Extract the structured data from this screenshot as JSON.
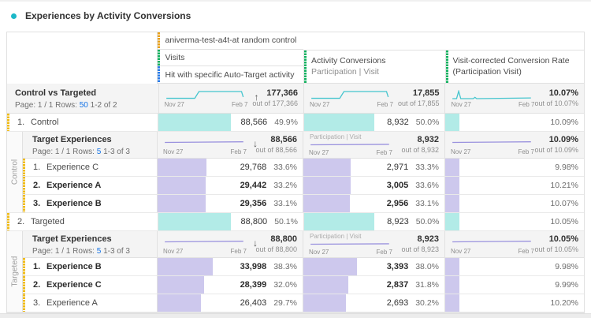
{
  "title": "Experiences by Activity Conversions",
  "colors": {
    "accent_dot": "#1CB8C8",
    "teal_line": "#45C5CE",
    "teal_bar": "#B2EBE7",
    "purple_line": "#9A92DE",
    "purple_bar": "#CDC8ED",
    "header_orange": "#E9A21B",
    "header_green": "#12B05F",
    "header_blue": "#2B7DE9",
    "row_yellow": "#EFBB18",
    "link_blue": "#1473E6"
  },
  "spark": {
    "start": "Nov 27",
    "end": "Feb 7"
  },
  "columns": {
    "dimension_header": "aniverma-test-a4t-at random control",
    "visits": {
      "metric": "Visits",
      "segment": "Hit with specific Auto-Target activity"
    },
    "conversions": {
      "metric": "Activity Conversions",
      "sub": "Participation | Visit"
    },
    "rate": {
      "metric": "Visit-corrected Conversion Rate",
      "sub": "(Participation Visit)"
    }
  },
  "summary": {
    "label": "Control vs Targeted",
    "page_prefix": "Page: 1 / 1",
    "rows_label": "Rows:",
    "rows_value": "50",
    "range": "1-2 of 2",
    "sort_arrow": "↑",
    "visits": {
      "total": "177,366",
      "out_of": "out of 177,366"
    },
    "conversions": {
      "total": "17,855",
      "out_of": "out of 17,855"
    },
    "rate": {
      "total": "10.07%",
      "out_of": "out of 10.07%"
    }
  },
  "rows": {
    "control": {
      "num": "1.",
      "label": "Control",
      "bold": false,
      "visits": {
        "value": "88,566",
        "pct": 49.9,
        "pct_label": "49.9%"
      },
      "conversions": {
        "value": "8,932",
        "pct": 50.0,
        "pct_label": "50.0%"
      },
      "rate": {
        "pct": 10.09,
        "pct_label": "10.09%"
      }
    },
    "targeted": {
      "num": "2.",
      "label": "Targeted",
      "bold": false,
      "visits": {
        "value": "88,800",
        "pct": 50.1,
        "pct_label": "50.1%"
      },
      "conversions": {
        "value": "8,923",
        "pct": 50.0,
        "pct_label": "50.0%"
      },
      "rate": {
        "pct": 10.05,
        "pct_label": "10.05%"
      }
    }
  },
  "control_group": {
    "side_label": "Control",
    "header": {
      "title": "Target Experiences",
      "page_prefix": "Page: 1 / 1",
      "rows_label": "Rows:",
      "rows_value": "5",
      "range": "1-3 of 3",
      "sort_arrow": "↓",
      "sub_label": "Participation | Visit",
      "visits": {
        "total": "88,566",
        "out_of": "out of 88,566"
      },
      "conversions": {
        "total": "8,932",
        "out_of": "out of 8,932"
      },
      "rate": {
        "total": "10.09%",
        "out_of": "out of 10.09%"
      }
    },
    "items": [
      {
        "num": "1.",
        "label": "Experience C",
        "bold": false,
        "visits": {
          "value": "29,768",
          "pct": 33.6,
          "pct_label": "33.6%"
        },
        "conversions": {
          "value": "2,971",
          "pct": 33.3,
          "pct_label": "33.3%"
        },
        "rate": {
          "pct": 9.98,
          "pct_label": "9.98%"
        }
      },
      {
        "num": "2.",
        "label": "Experience A",
        "bold": true,
        "visits": {
          "value": "29,442",
          "pct": 33.2,
          "pct_label": "33.2%"
        },
        "conversions": {
          "value": "3,005",
          "pct": 33.6,
          "pct_label": "33.6%"
        },
        "rate": {
          "pct": 10.21,
          "pct_label": "10.21%"
        }
      },
      {
        "num": "3.",
        "label": "Experience B",
        "bold": true,
        "visits": {
          "value": "29,356",
          "pct": 33.1,
          "pct_label": "33.1%"
        },
        "conversions": {
          "value": "2,956",
          "pct": 33.1,
          "pct_label": "33.1%"
        },
        "rate": {
          "pct": 10.07,
          "pct_label": "10.07%"
        }
      }
    ]
  },
  "targeted_group": {
    "side_label": "Targeted",
    "header": {
      "title": "Target Experiences",
      "page_prefix": "Page: 1 / 1",
      "rows_label": "Rows:",
      "rows_value": "5",
      "range": "1-3 of 3",
      "sort_arrow": "↓",
      "sub_label": "Participation | Visit",
      "visits": {
        "total": "88,800",
        "out_of": "out of 88,800"
      },
      "conversions": {
        "total": "8,923",
        "out_of": "out of 8,923"
      },
      "rate": {
        "total": "10.05%",
        "out_of": "out of 10.05%"
      }
    },
    "items": [
      {
        "num": "1.",
        "label": "Experience B",
        "bold": true,
        "visits": {
          "value": "33,998",
          "pct": 38.3,
          "pct_label": "38.3%"
        },
        "conversions": {
          "value": "3,393",
          "pct": 38.0,
          "pct_label": "38.0%"
        },
        "rate": {
          "pct": 9.98,
          "pct_label": "9.98%"
        }
      },
      {
        "num": "2.",
        "label": "Experience C",
        "bold": true,
        "visits": {
          "value": "28,399",
          "pct": 32.0,
          "pct_label": "32.0%"
        },
        "conversions": {
          "value": "2,837",
          "pct": 31.8,
          "pct_label": "31.8%"
        },
        "rate": {
          "pct": 9.99,
          "pct_label": "9.99%"
        }
      },
      {
        "num": "3.",
        "label": "Experience A",
        "bold": false,
        "visits": {
          "value": "26,403",
          "pct": 29.7,
          "pct_label": "29.7%"
        },
        "conversions": {
          "value": "2,693",
          "pct": 30.2,
          "pct_label": "30.2%"
        },
        "rate": {
          "pct": 10.2,
          "pct_label": "10.20%"
        }
      }
    ]
  }
}
